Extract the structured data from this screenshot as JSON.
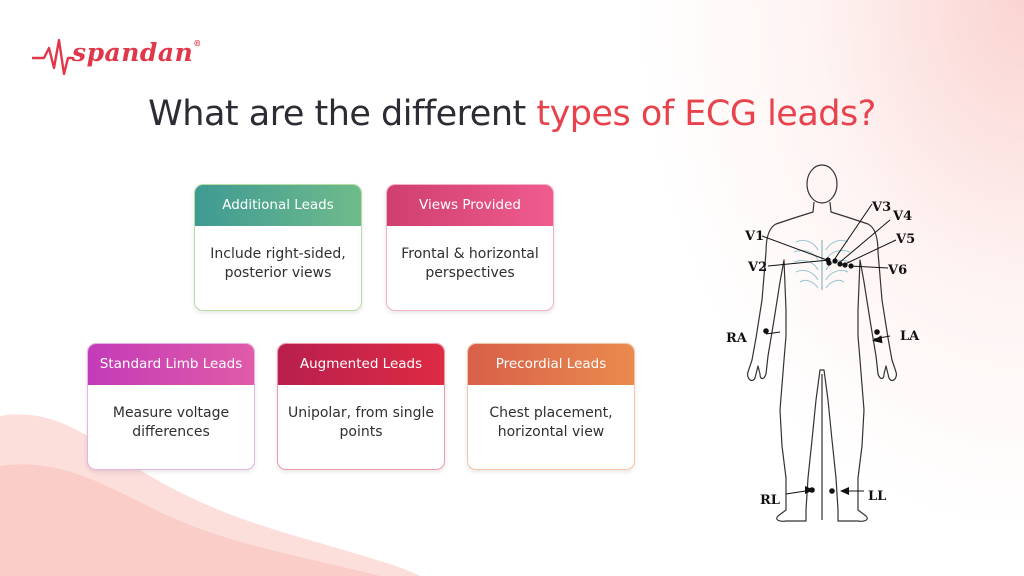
{
  "brand": {
    "name": "spandan",
    "registered": "®"
  },
  "title": {
    "prefix": "What are the different ",
    "highlight": "types of ECG leads?"
  },
  "cards": {
    "additional": {
      "heading": "Additional Leads",
      "body": "Include right-sided, posterior views",
      "color": "#4fa18f"
    },
    "views": {
      "heading": "Views Provided",
      "body": "Frontal & horizontal perspectives",
      "color": "#e04d80"
    },
    "standard": {
      "heading": "Standard Limb Leads",
      "body": "Measure voltage differences",
      "color": "#c83fb3"
    },
    "augmented": {
      "heading": "Augmented Leads",
      "body": "Unipolar, from single points",
      "color": "#c9243f"
    },
    "precordial": {
      "heading": "Precordial Leads",
      "body": "Chest placement, horizontal view",
      "color": "#e07248"
    }
  },
  "diagram": {
    "labels": {
      "v1": "V1",
      "v2": "V2",
      "v3": "V3",
      "v4": "V4",
      "v5": "V5",
      "v6": "V6",
      "ra": "RA",
      "la": "LA",
      "rl": "RL",
      "ll": "LL"
    }
  },
  "colors": {
    "accent": "#e8434d",
    "title": "#2d2b33"
  }
}
